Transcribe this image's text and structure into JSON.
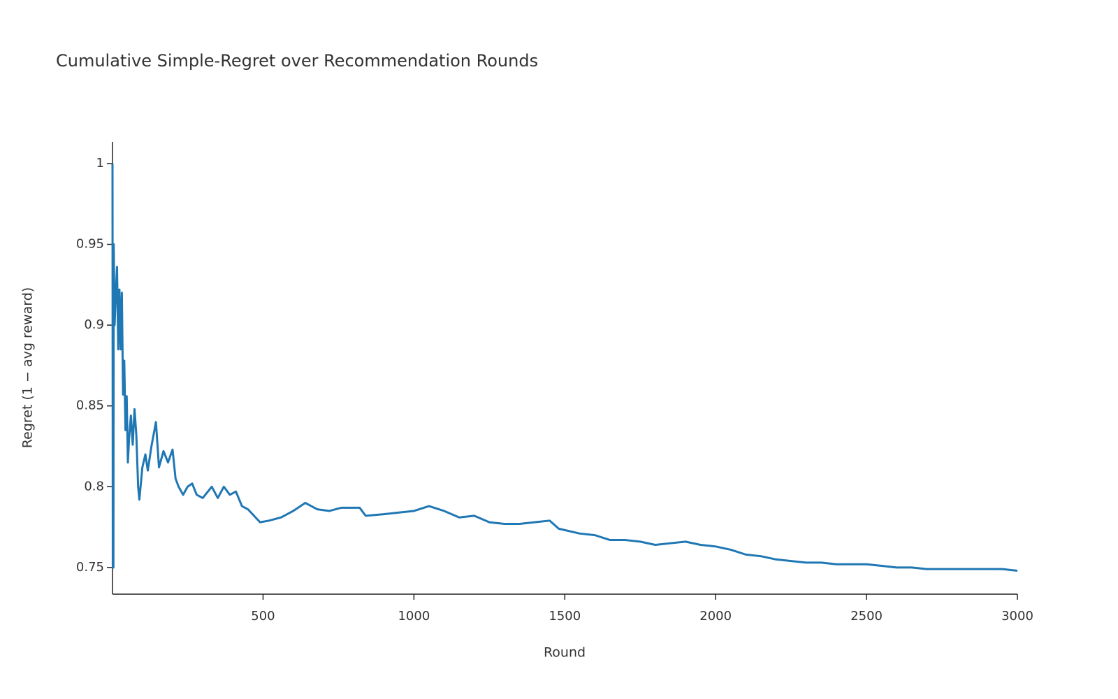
{
  "chart_data": {
    "type": "line",
    "title": "Cumulative Simple-Regret over Recommendation Rounds",
    "x_label": "Round",
    "y_label": "Regret (1 − avg reward)",
    "x": [
      1,
      2,
      4,
      5,
      8,
      12,
      16,
      20,
      24,
      28,
      32,
      36,
      40,
      44,
      48,
      52,
      56,
      62,
      68,
      74,
      80,
      86,
      90,
      100,
      110,
      118,
      130,
      145,
      155,
      170,
      185,
      200,
      210,
      220,
      235,
      250,
      265,
      280,
      300,
      330,
      350,
      370,
      390,
      410,
      430,
      450,
      470,
      490,
      520,
      560,
      600,
      640,
      680,
      720,
      760,
      820,
      840,
      900,
      950,
      1000,
      1050,
      1100,
      1150,
      1200,
      1250,
      1300,
      1350,
      1400,
      1450,
      1480,
      1550,
      1600,
      1650,
      1700,
      1750,
      1800,
      1850,
      1900,
      1950,
      2000,
      2050,
      2100,
      2150,
      2200,
      2250,
      2300,
      2350,
      2400,
      2450,
      2500,
      2550,
      2600,
      2650,
      2700,
      2750,
      2800,
      2850,
      2900,
      2950,
      3000
    ],
    "series": [
      {
        "name": "Regret",
        "color": "#1f77b4",
        "values": [
          1.0,
          0.75,
          0.75,
          0.95,
          0.9,
          0.92,
          0.936,
          0.885,
          0.922,
          0.885,
          0.92,
          0.857,
          0.878,
          0.835,
          0.856,
          0.815,
          0.83,
          0.844,
          0.826,
          0.848,
          0.832,
          0.8,
          0.792,
          0.812,
          0.82,
          0.81,
          0.825,
          0.84,
          0.812,
          0.822,
          0.815,
          0.823,
          0.805,
          0.8,
          0.795,
          0.8,
          0.802,
          0.795,
          0.793,
          0.8,
          0.793,
          0.8,
          0.795,
          0.797,
          0.788,
          0.786,
          0.782,
          0.778,
          0.779,
          0.781,
          0.785,
          0.79,
          0.786,
          0.785,
          0.787,
          0.787,
          0.782,
          0.783,
          0.784,
          0.785,
          0.788,
          0.785,
          0.781,
          0.782,
          0.778,
          0.777,
          0.777,
          0.778,
          0.779,
          0.774,
          0.771,
          0.77,
          0.767,
          0.767,
          0.766,
          0.764,
          0.765,
          0.766,
          0.764,
          0.763,
          0.761,
          0.758,
          0.757,
          0.755,
          0.754,
          0.753,
          0.753,
          0.752,
          0.752,
          0.752,
          0.751,
          0.75,
          0.75,
          0.749,
          0.749,
          0.749,
          0.749,
          0.749,
          0.749,
          0.748
        ]
      }
    ],
    "xlim": [
      1,
      3000
    ],
    "ylim": [
      0.7335,
      1.0134
    ],
    "xticks": [
      500,
      1000,
      1500,
      2000,
      2500,
      3000
    ],
    "yticks": [
      0.75,
      0.8,
      0.85,
      0.9,
      0.95,
      1
    ]
  }
}
